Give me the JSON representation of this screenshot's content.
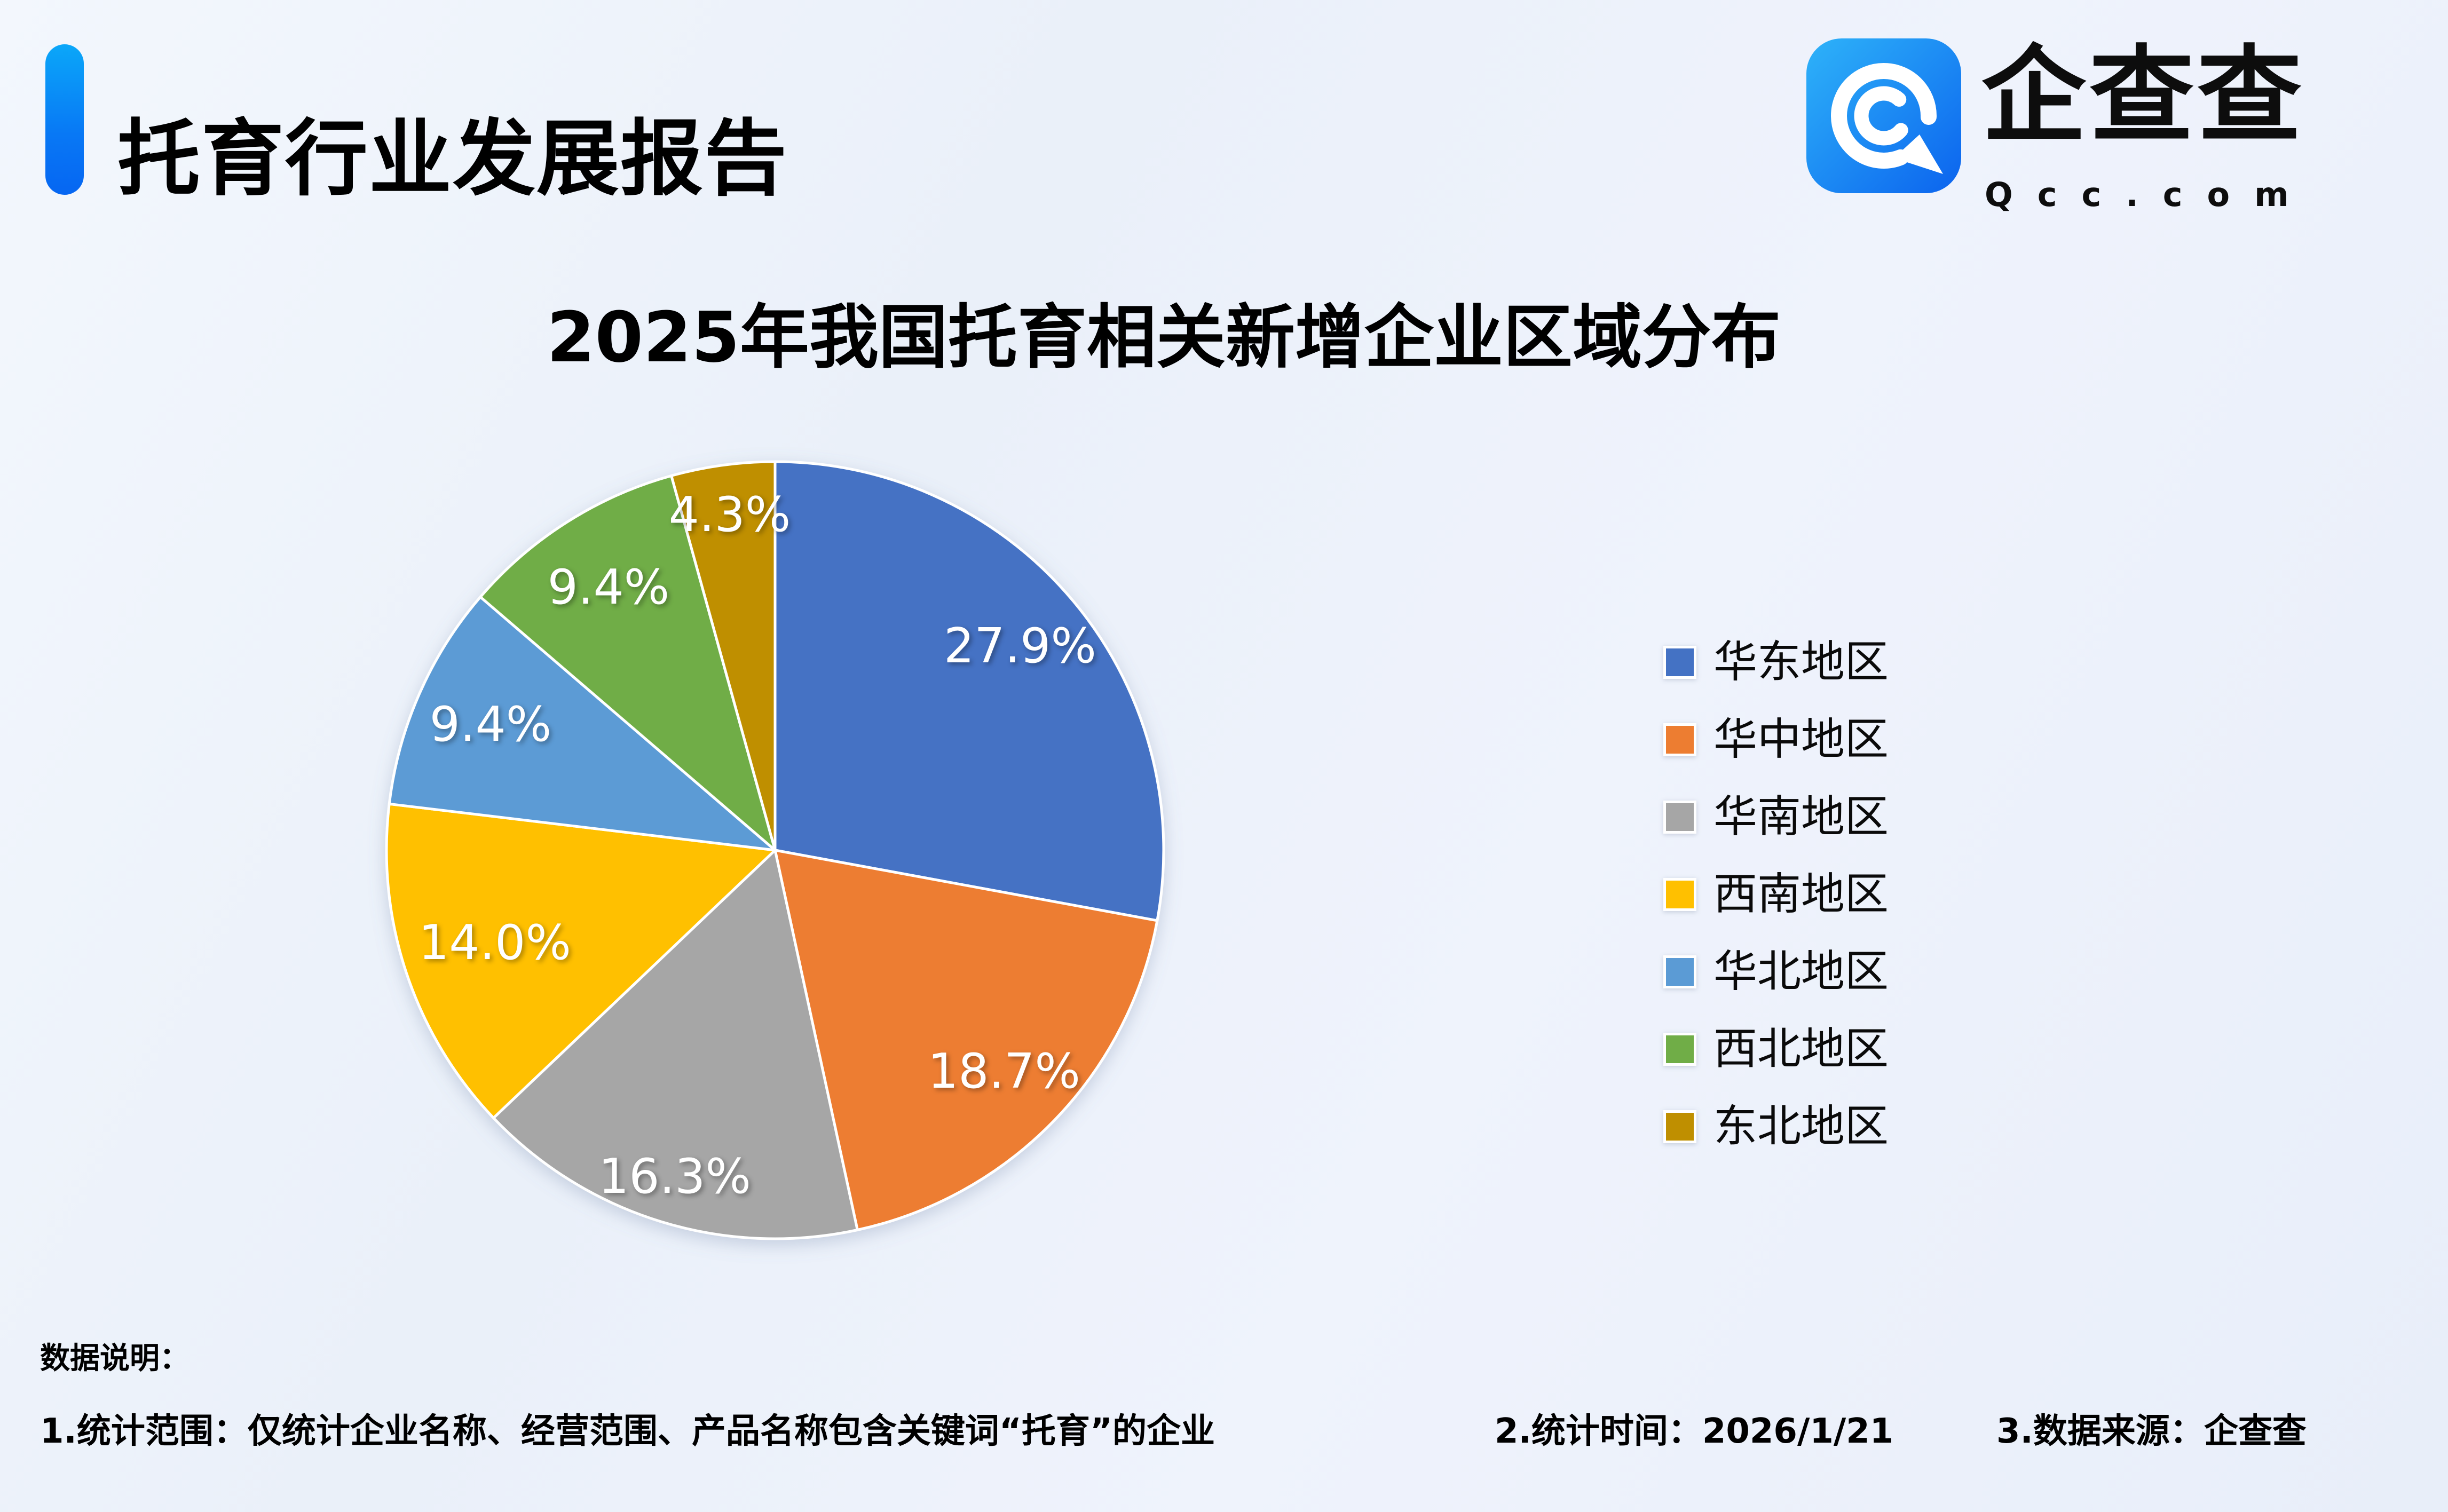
{
  "header": {
    "title": "托育行业发展报告"
  },
  "logo": {
    "company": "企查查",
    "domain": "Qcc.com",
    "icon_color_top": "#2EB3F9",
    "icon_color_bottom": "#0B63EE"
  },
  "chart_data": {
    "type": "pie",
    "title": "2025年我国托育相关新增企业区域分布",
    "categories": [
      "华东地区",
      "华中地区",
      "华南地区",
      "西南地区",
      "华北地区",
      "西北地区",
      "东北地区"
    ],
    "values": [
      27.9,
      18.7,
      16.3,
      14.0,
      9.4,
      9.4,
      4.3
    ],
    "labels": [
      "27.9%",
      "18.7%",
      "16.3%",
      "14.0%",
      "9.4%",
      "9.4%",
      "4.3%"
    ],
    "colors": [
      "#4472C4",
      "#ED7D31",
      "#A6A6A6",
      "#FFC000",
      "#5B9BD5",
      "#70AD47",
      "#BF8F00"
    ],
    "start_angle_deg": 0,
    "direction": "clockwise",
    "legend_position": "right",
    "label_color": "#FFFFFF",
    "slice_border_color": "#FFFFFF"
  },
  "footer": {
    "heading": "数据说明：",
    "notes": [
      "1.统计范围：仅统计企业名称、经营范围、产品名称包含关键词“托育”的企业",
      "2.统计时间：2026/1/21",
      "3.数据来源：企查查"
    ]
  }
}
